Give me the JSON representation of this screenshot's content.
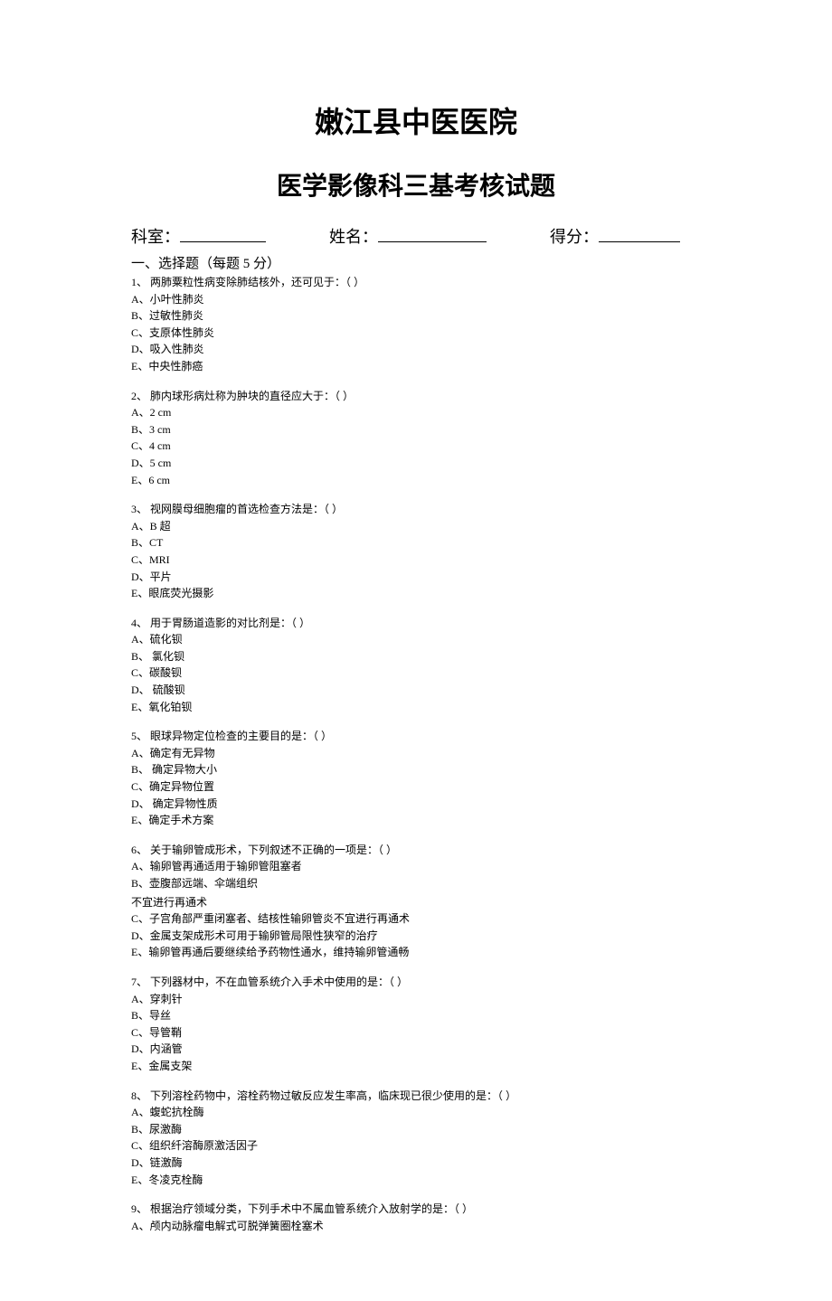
{
  "title_main": "嫩江县中医医院",
  "title_sub": "医学影像科三基考核试题",
  "header": {
    "dept_label": "科室：",
    "name_label": "姓名：",
    "score_label": "得分："
  },
  "section_header": "一、选择题（每题 5 分）",
  "questions": [
    {
      "stem": "1、 两肺粟粒性病变除肺结核外，还可见于：（    ）",
      "options": [
        "A、小叶性肺炎",
        "B、过敏性肺炎",
        "C、支原体性肺炎",
        "D、吸入性肺炎",
        "E、中央性肺癌"
      ]
    },
    {
      "stem": "2、 肺内球形病灶称为肿块的直径应大于：（    ）",
      "options": [
        "A、2 cm",
        "B、3 cm",
        "C、4 cm",
        "D、5 cm",
        "E、6 cm"
      ]
    },
    {
      "stem": "3、 视网膜母细胞瘤的首选检查方法是：（    ）",
      "options": [
        "A、B 超",
        "B、CT",
        "C、MRI",
        "D、平片",
        "E、眼底荧光摄影"
      ]
    },
    {
      "stem": "4、 用于胃肠道造影的对比剂是：（    ）",
      "options": [
        "A、硫化钡",
        "B、 氯化钡",
        "C、碳酸钡",
        "D、 硫酸钡",
        "E、氧化铂钡"
      ]
    },
    {
      "stem": "5、 眼球异物定位检查的主要目的是：（    ）",
      "options": [
        "A、确定有无异物",
        "B、 确定异物大小",
        "C、确定异物位置",
        "D、 确定异物性质",
        "E、确定手术方案"
      ]
    },
    {
      "stem": "6、 关于输卵管成形术，下列叙述不正确的一项是：（    ）",
      "options": [
        "A、输卵管再通适用于输卵管阻塞者",
        "B、壶腹部远端、伞端组织"
      ],
      "note": "不宜进行再通术",
      "options_after": [
        "C、子宫角部严重闭塞者、结核性输卵管炎不宜进行再通术",
        "D、金属支架成形术可用于输卵管局限性狭窄的治疗",
        "E、输卵管再通后要继续给予药物性通水，维持输卵管通畅"
      ]
    },
    {
      "stem": "7、 下列器材中，不在血管系统介入手术中使用的是：（    ）",
      "options": [
        "A、穿刺针",
        "B、导丝",
        "C、导管鞘",
        "D、内涵管",
        "E、金属支架"
      ]
    },
    {
      "stem": "8、 下列溶栓药物中，溶栓药物过敏反应发生率高，临床现已很少使用的是：（    ）",
      "options": [
        "A、蝮蛇抗栓酶",
        "B、尿激酶",
        "C、组织纤溶酶原激活因子",
        "D、链激酶",
        "E、冬凌克栓酶"
      ]
    },
    {
      "stem": "9、 根据治疗领域分类，下列手术中不属血管系统介入放射学的是：（    ）",
      "options": [
        "A、颅内动脉瘤电解式可脱弹簧圈栓塞术"
      ]
    }
  ]
}
